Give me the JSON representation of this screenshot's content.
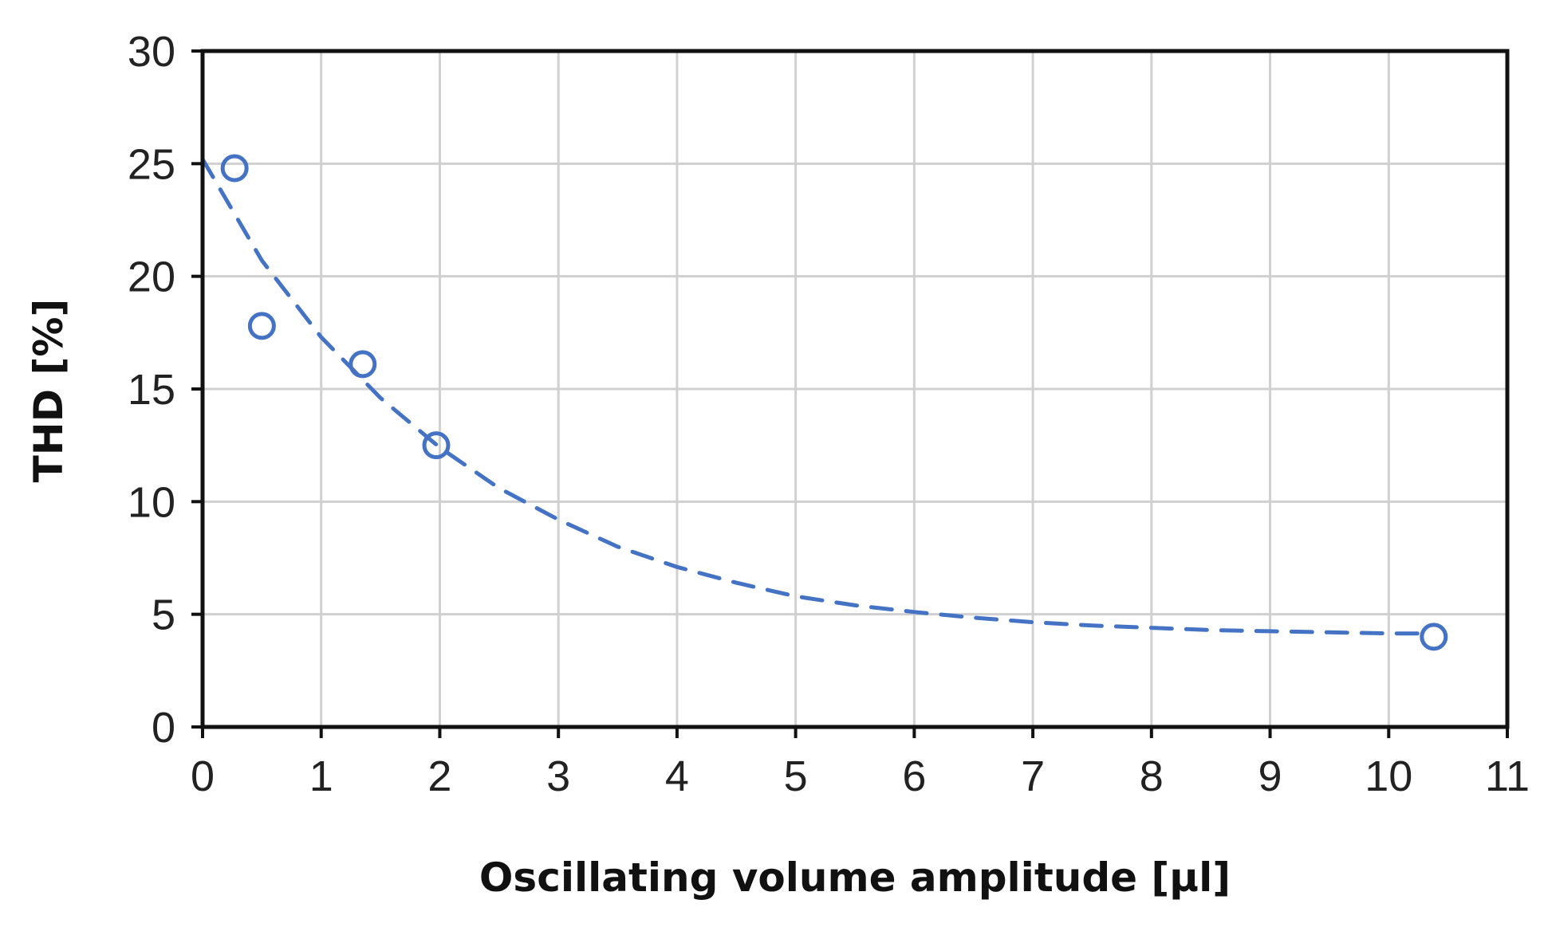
{
  "chart_data": {
    "type": "scatter",
    "xlabel": "Oscillating volume amplitude [μl]",
    "ylabel": "THD [%]",
    "xlim": [
      0,
      11
    ],
    "ylim": [
      0,
      30
    ],
    "x_ticks": [
      0,
      1,
      2,
      3,
      4,
      5,
      6,
      7,
      8,
      9,
      10,
      11
    ],
    "y_ticks": [
      0,
      5,
      10,
      15,
      20,
      25,
      30
    ],
    "grid": true,
    "legend": "none",
    "series": [
      {
        "marker": "open-circle",
        "color": "#4472C4",
        "x": [
          0.27,
          0.5,
          1.35,
          1.97,
          10.38
        ],
        "y": [
          24.8,
          17.8,
          16.1,
          12.5,
          4.0
        ]
      }
    ],
    "trendline": {
      "style": "dashed",
      "color": "#4472C4",
      "x": [
        0,
        0.5,
        1,
        1.5,
        2,
        2.5,
        3,
        3.5,
        4,
        4.5,
        5,
        5.5,
        6,
        6.5,
        7,
        7.5,
        8,
        8.5,
        9,
        9.5,
        10,
        10.3
      ],
      "y": [
        25.2,
        20.7,
        17.3,
        14.6,
        12.4,
        10.6,
        9.2,
        8.0,
        7.1,
        6.4,
        5.8,
        5.4,
        5.1,
        4.85,
        4.65,
        4.5,
        4.4,
        4.3,
        4.25,
        4.2,
        4.15,
        4.15
      ]
    }
  }
}
